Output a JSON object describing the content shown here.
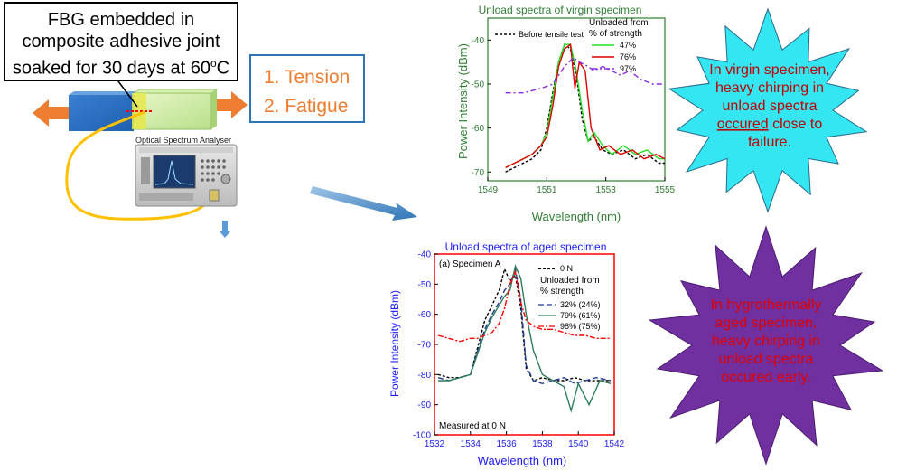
{
  "setup": {
    "description_lines": [
      "FBG embedded in",
      "composite adhesive joint",
      "soaked for 30 days at 60",
      "o",
      "C"
    ],
    "loading_modes": [
      "1.  Tension",
      "2.  Fatigue"
    ],
    "instrument_label": "Optical Spectrum Analyser"
  },
  "callouts": {
    "virgin": [
      "In virgin specimen,",
      "heavy chirping in",
      "unload spectra",
      "occured",
      " close to",
      "failure."
    ],
    "aged": [
      "In hygrothermally",
      "aged specimen,",
      "heavy chirping in",
      "unload spectra",
      "occured early."
    ]
  },
  "colors": {
    "virgin_title": "#2e7d32",
    "aged_title": "#1a1aff",
    "aged_frame": "#ff0000",
    "orange": "#ed7d31",
    "callout_cyan": "#33e6f2",
    "callout_purple": "#7030a0"
  },
  "chart_data": [
    {
      "type": "line",
      "title": "Unload spectra of virgin specimen",
      "xlabel": "Wavelength (nm)",
      "ylabel": "Power Intensity (dBm)",
      "xlim": [
        1549,
        1555
      ],
      "ylim": [
        -72,
        -35
      ],
      "xticks": [
        "1549",
        "1551",
        "1553",
        "1555"
      ],
      "yticks": [
        "-40",
        "-50",
        "-60",
        "-70"
      ],
      "legend_title": [
        "Unloaded from",
        "% of strength"
      ],
      "series": [
        {
          "name": "Before tensile test",
          "color": "#000000",
          "dash": "3,2",
          "x": [
            1549.6,
            1549.9,
            1550.2,
            1550.5,
            1550.8,
            1551.0,
            1551.2,
            1551.4,
            1551.6,
            1551.8,
            1552.0,
            1552.2,
            1552.4,
            1552.6,
            1552.9,
            1553.2,
            1553.6,
            1554.0,
            1554.4,
            1554.8,
            1555.0
          ],
          "y": [
            -70,
            -69,
            -68,
            -67,
            -65,
            -60,
            -52,
            -45,
            -41,
            -42,
            -48,
            -58,
            -63,
            -62,
            -65,
            -66,
            -65,
            -67,
            -66,
            -68,
            -68
          ]
        },
        {
          "name": "47%",
          "color": "#22dd22",
          "dash": "",
          "x": [
            1549.6,
            1549.9,
            1550.2,
            1550.5,
            1550.8,
            1551.0,
            1551.2,
            1551.4,
            1551.6,
            1551.8,
            1552.0,
            1552.2,
            1552.4,
            1552.6,
            1552.9,
            1553.2,
            1553.6,
            1554.0,
            1554.4,
            1554.8,
            1555.0
          ],
          "y": [
            -69,
            -68,
            -67,
            -66,
            -64,
            -61,
            -53,
            -45,
            -41,
            -41,
            -47,
            -56,
            -63,
            -61,
            -64,
            -66,
            -64,
            -66,
            -65,
            -67,
            -67
          ]
        },
        {
          "name": "76%",
          "color": "#dd0000",
          "dash": "",
          "x": [
            1549.6,
            1549.9,
            1550.2,
            1550.5,
            1550.8,
            1551.0,
            1551.2,
            1551.4,
            1551.6,
            1551.8,
            1551.95,
            1552.1,
            1552.3,
            1552.5,
            1552.8,
            1553.1,
            1553.5,
            1553.9,
            1554.3,
            1554.7,
            1555.0
          ],
          "y": [
            -69,
            -68,
            -67,
            -66,
            -64,
            -62,
            -55,
            -46,
            -42,
            -41,
            -51,
            -45,
            -47,
            -60,
            -65,
            -64,
            -66,
            -65,
            -67,
            -66,
            -67
          ]
        },
        {
          "name": "97%",
          "color": "#8a2be2",
          "dash": "6,3,2,3",
          "x": [
            1549.6,
            1550.2,
            1550.8,
            1551.2,
            1551.6,
            1551.9,
            1552.1,
            1552.4,
            1552.6,
            1552.9,
            1553.2,
            1553.5,
            1553.8,
            1554.2,
            1554.6,
            1555.0
          ],
          "y": [
            -52,
            -52,
            -51,
            -50,
            -46,
            -44,
            -45,
            -46,
            -47,
            -46,
            -47,
            -48,
            -47,
            -49,
            -50,
            -50
          ]
        }
      ]
    },
    {
      "type": "line",
      "title": "Unload spectra of aged specimen",
      "subtitle": "(a) Specimen A",
      "annotation": "Measured at 0 N",
      "xlabel": "Wavelength (nm)",
      "ylabel": "Power Intensity (dBm)",
      "xlim": [
        1532,
        1542
      ],
      "ylim": [
        -100,
        -40
      ],
      "xticks": [
        "1532",
        "1534",
        "1536",
        "1538",
        "1540",
        "1542"
      ],
      "yticks": [
        "-40",
        "-50",
        "-60",
        "-70",
        "-80",
        "-90",
        "-100"
      ],
      "legend_title": [
        "Unloaded from",
        "% strength"
      ],
      "series": [
        {
          "name": "0 N",
          "color": "#000000",
          "dash": "3,2",
          "x": [
            1532.2,
            1532.8,
            1533.4,
            1534.0,
            1534.4,
            1534.8,
            1535.2,
            1535.6,
            1535.9,
            1536.2,
            1536.5,
            1536.8,
            1537.1,
            1537.5,
            1538.0,
            1538.6,
            1539.2,
            1539.8,
            1540.4,
            1541.0,
            1541.8
          ],
          "y": [
            -80,
            -81,
            -81,
            -80,
            -71,
            -62,
            -57,
            -52,
            -45,
            -49,
            -47,
            -58,
            -78,
            -82,
            -81,
            -82,
            -82,
            -81,
            -82,
            -82,
            -82
          ]
        },
        {
          "name": "32%  (24%)",
          "color": "#1f3a93",
          "dash": "6,3",
          "x": [
            1532.2,
            1532.8,
            1533.4,
            1534.0,
            1534.4,
            1534.8,
            1535.2,
            1535.6,
            1535.9,
            1536.2,
            1536.5,
            1536.8,
            1537.1,
            1537.5,
            1538.0,
            1538.6,
            1539.2,
            1539.8,
            1540.4,
            1541.0,
            1541.8
          ],
          "y": [
            -81,
            -82,
            -81,
            -80,
            -72,
            -65,
            -60,
            -56,
            -52,
            -50,
            -45,
            -55,
            -77,
            -82,
            -83,
            -82,
            -81,
            -83,
            -82,
            -81,
            -82
          ]
        },
        {
          "name": "79%  (61%)",
          "color": "#2e7d5b",
          "dash": "",
          "x": [
            1532.2,
            1532.8,
            1533.4,
            1534.0,
            1534.4,
            1534.8,
            1535.2,
            1535.6,
            1535.9,
            1536.2,
            1536.5,
            1536.8,
            1537.1,
            1537.5,
            1538.0,
            1538.6,
            1539.2,
            1539.6,
            1540.0,
            1540.6,
            1541.2,
            1541.8
          ],
          "y": [
            -82,
            -82,
            -81,
            -80,
            -73,
            -66,
            -61,
            -57,
            -54,
            -52,
            -44,
            -48,
            -60,
            -72,
            -80,
            -82,
            -84,
            -92,
            -83,
            -90,
            -82,
            -83
          ]
        },
        {
          "name": "98%  (75%)",
          "color": "#ff0000",
          "dash": "6,2,2,2",
          "x": [
            1532.2,
            1532.8,
            1533.4,
            1534.0,
            1534.4,
            1534.8,
            1535.2,
            1535.6,
            1535.9,
            1536.2,
            1536.5,
            1536.8,
            1537.1,
            1537.5,
            1538.0,
            1538.6,
            1539.2,
            1539.8,
            1540.4,
            1541.0,
            1541.8
          ],
          "y": [
            -67,
            -68,
            -69,
            -68,
            -68,
            -67,
            -66,
            -63,
            -58,
            -50,
            -46,
            -56,
            -62,
            -64,
            -65,
            -65,
            -66,
            -67,
            -67,
            -68,
            -68
          ]
        }
      ]
    }
  ]
}
